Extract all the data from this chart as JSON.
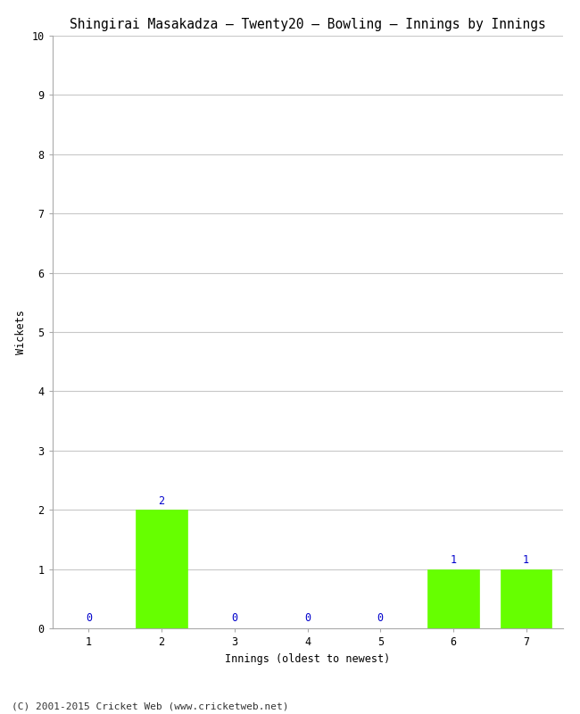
{
  "title": "Shingirai Masakadza – Twenty20 – Bowling – Innings by Innings",
  "xlabel": "Innings (oldest to newest)",
  "ylabel": "Wickets",
  "categories": [
    "1",
    "2",
    "3",
    "4",
    "5",
    "6",
    "7"
  ],
  "values": [
    0,
    2,
    0,
    0,
    0,
    1,
    1
  ],
  "bar_color": "#66ff00",
  "bar_edge_color": "#66ff00",
  "value_color": "#0000cc",
  "ylim": [
    0,
    10
  ],
  "yticks": [
    0,
    1,
    2,
    3,
    4,
    5,
    6,
    7,
    8,
    9,
    10
  ],
  "background_color": "#ffffff",
  "grid_color": "#c8c8c8",
  "title_fontsize": 10.5,
  "axis_fontsize": 8.5,
  "tick_fontsize": 8.5,
  "label_fontsize": 8.5,
  "footer": "(C) 2001-2015 Cricket Web (www.cricketweb.net)",
  "footer_fontsize": 8.0
}
